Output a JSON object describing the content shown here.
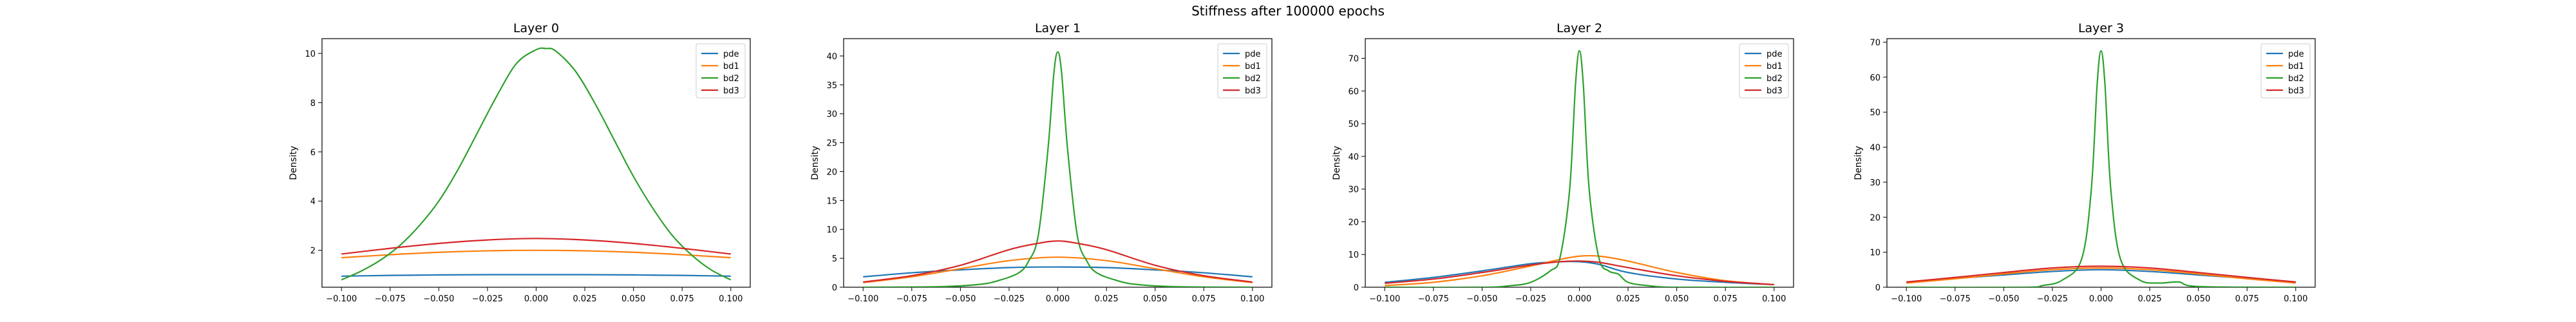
{
  "figure": {
    "suptitle": "Stiffness after 100000 epochs"
  },
  "colors": {
    "pde": "#1f77b4",
    "bd1": "#ff7f0e",
    "bd2": "#2ca02c",
    "bd3": "#d62728"
  },
  "chart_data": [
    {
      "type": "line",
      "title": "Layer 0",
      "xlabel": "",
      "ylabel": "Density",
      "xlim": [
        -0.11,
        0.11
      ],
      "ylim": [
        0.5,
        10.6
      ],
      "xticks": [
        -0.1,
        -0.075,
        -0.05,
        -0.025,
        0.0,
        0.025,
        0.05,
        0.075,
        0.1
      ],
      "xtick_labels": [
        "−0.100",
        "−0.075",
        "−0.050",
        "−0.025",
        "0.000",
        "0.025",
        "0.050",
        "0.075",
        "0.100"
      ],
      "yticks": [
        2,
        4,
        6,
        8,
        10
      ],
      "ytick_labels": [
        "2",
        "4",
        "6",
        "8",
        "10"
      ],
      "legend": {
        "placement": "top-right",
        "entries": [
          "pde",
          "bd1",
          "bd2",
          "bd3"
        ]
      },
      "grid": false,
      "series": [
        {
          "name": "pde",
          "x": [
            -0.1,
            -0.075,
            -0.05,
            -0.025,
            0.0,
            0.025,
            0.05,
            0.075,
            0.1
          ],
          "values": [
            0.95,
            0.98,
            1.0,
            1.01,
            1.01,
            1.01,
            1.0,
            0.98,
            0.95
          ]
        },
        {
          "name": "bd1",
          "x": [
            -0.1,
            -0.075,
            -0.05,
            -0.025,
            0.0,
            0.025,
            0.05,
            0.075,
            0.1
          ],
          "values": [
            1.7,
            1.82,
            1.92,
            1.98,
            2.0,
            1.98,
            1.92,
            1.82,
            1.7
          ]
        },
        {
          "name": "bd2",
          "x": [
            -0.1,
            -0.09,
            -0.08,
            -0.07,
            -0.06,
            -0.05,
            -0.04,
            -0.03,
            -0.02,
            -0.01,
            0.0,
            0.005,
            0.01,
            0.02,
            0.03,
            0.04,
            0.05,
            0.06,
            0.07,
            0.08,
            0.09,
            0.1
          ],
          "values": [
            0.8,
            1.15,
            1.6,
            2.2,
            3.0,
            4.0,
            5.3,
            6.8,
            8.3,
            9.6,
            10.15,
            10.2,
            10.1,
            9.3,
            8.0,
            6.5,
            5.0,
            3.7,
            2.6,
            1.8,
            1.2,
            0.8
          ]
        },
        {
          "name": "bd3",
          "x": [
            -0.1,
            -0.075,
            -0.05,
            -0.025,
            0.0,
            0.025,
            0.05,
            0.075,
            0.1
          ],
          "values": [
            1.85,
            2.08,
            2.28,
            2.42,
            2.48,
            2.42,
            2.28,
            2.08,
            1.85
          ]
        }
      ]
    },
    {
      "type": "line",
      "title": "Layer 1",
      "xlabel": "",
      "ylabel": "Density",
      "xlim": [
        -0.11,
        0.11
      ],
      "ylim": [
        0,
        43
      ],
      "xticks": [
        -0.1,
        -0.075,
        -0.05,
        -0.025,
        0.0,
        0.025,
        0.05,
        0.075,
        0.1
      ],
      "xtick_labels": [
        "−0.100",
        "−0.075",
        "−0.050",
        "−0.025",
        "0.000",
        "0.025",
        "0.050",
        "0.075",
        "0.100"
      ],
      "yticks": [
        0,
        5,
        10,
        15,
        20,
        25,
        30,
        35,
        40
      ],
      "ytick_labels": [
        "0",
        "5",
        "10",
        "15",
        "20",
        "25",
        "30",
        "35",
        "40"
      ],
      "legend": {
        "placement": "top-right",
        "entries": [
          "pde",
          "bd1",
          "bd2",
          "bd3"
        ]
      },
      "grid": false,
      "series": [
        {
          "name": "pde",
          "x": [
            -0.1,
            -0.075,
            -0.05,
            -0.025,
            0.0,
            0.025,
            0.05,
            0.075,
            0.1
          ],
          "values": [
            1.8,
            2.5,
            3.0,
            3.4,
            3.5,
            3.4,
            3.0,
            2.5,
            1.8
          ]
        },
        {
          "name": "bd1",
          "x": [
            -0.1,
            -0.075,
            -0.05,
            -0.025,
            0.0,
            0.025,
            0.05,
            0.075,
            0.1
          ],
          "values": [
            0.8,
            1.8,
            3.2,
            4.6,
            5.2,
            4.6,
            3.2,
            1.8,
            0.8
          ]
        },
        {
          "name": "bd2",
          "x": [
            -0.1,
            -0.06,
            -0.04,
            -0.03,
            -0.02,
            -0.015,
            -0.01,
            -0.005,
            -0.002,
            0.0,
            0.002,
            0.005,
            0.01,
            0.015,
            0.02,
            0.03,
            0.04,
            0.06,
            0.1
          ],
          "values": [
            0.0,
            0.1,
            0.5,
            1.2,
            2.5,
            4.5,
            9.0,
            24.0,
            37.0,
            40.7,
            37.0,
            24.0,
            9.0,
            4.5,
            2.5,
            1.2,
            0.5,
            0.1,
            0.0
          ]
        },
        {
          "name": "bd3",
          "x": [
            -0.1,
            -0.075,
            -0.05,
            -0.025,
            -0.01,
            0.0,
            0.01,
            0.025,
            0.05,
            0.075,
            0.1
          ],
          "values": [
            0.9,
            2.0,
            3.8,
            6.5,
            7.6,
            8.0,
            7.6,
            6.5,
            3.8,
            2.0,
            0.9
          ]
        }
      ]
    },
    {
      "type": "line",
      "title": "Layer 2",
      "xlabel": "",
      "ylabel": "Density",
      "xlim": [
        -0.11,
        0.11
      ],
      "ylim": [
        0,
        76
      ],
      "xticks": [
        -0.1,
        -0.075,
        -0.05,
        -0.025,
        0.0,
        0.025,
        0.05,
        0.075,
        0.1
      ],
      "xtick_labels": [
        "−0.100",
        "−0.075",
        "−0.050",
        "−0.025",
        "0.000",
        "0.025",
        "0.050",
        "0.075",
        "0.100"
      ],
      "yticks": [
        0,
        10,
        20,
        30,
        40,
        50,
        60,
        70
      ],
      "ytick_labels": [
        "0",
        "10",
        "20",
        "30",
        "40",
        "50",
        "60",
        "70"
      ],
      "legend": {
        "placement": "top-right",
        "entries": [
          "pde",
          "bd1",
          "bd2",
          "bd3"
        ]
      },
      "grid": false,
      "series": [
        {
          "name": "pde",
          "x": [
            -0.1,
            -0.075,
            -0.05,
            -0.025,
            -0.01,
            0.0,
            0.01,
            0.025,
            0.05,
            0.075,
            0.1
          ],
          "values": [
            1.5,
            3.0,
            5.0,
            7.2,
            7.8,
            7.8,
            7.0,
            4.5,
            2.5,
            1.5,
            0.8
          ]
        },
        {
          "name": "bd1",
          "x": [
            -0.1,
            -0.075,
            -0.05,
            -0.025,
            -0.01,
            0.0,
            0.01,
            0.025,
            0.05,
            0.075,
            0.1
          ],
          "values": [
            0.5,
            1.5,
            3.5,
            6.5,
            8.5,
            9.5,
            9.5,
            8.0,
            4.5,
            2.0,
            0.8
          ]
        },
        {
          "name": "bd2",
          "x": [
            -0.1,
            -0.05,
            -0.035,
            -0.025,
            -0.015,
            -0.01,
            -0.005,
            -0.002,
            0.0,
            0.002,
            0.005,
            0.01,
            0.015,
            0.02,
            0.025,
            0.035,
            0.05,
            0.1
          ],
          "values": [
            0.0,
            0.0,
            0.5,
            1.5,
            5.0,
            9.0,
            30.0,
            62.0,
            72.3,
            62.0,
            30.0,
            9.0,
            5.0,
            4.0,
            1.5,
            0.5,
            0.0,
            0.0
          ]
        },
        {
          "name": "bd3",
          "x": [
            -0.1,
            -0.075,
            -0.05,
            -0.025,
            -0.01,
            0.0,
            0.01,
            0.025,
            0.05,
            0.075,
            0.1
          ],
          "values": [
            1.2,
            2.5,
            4.5,
            6.8,
            7.8,
            8.0,
            7.6,
            6.0,
            3.5,
            1.8,
            0.8
          ]
        }
      ]
    },
    {
      "type": "line",
      "title": "Layer 3",
      "xlabel": "",
      "ylabel": "Density",
      "xlim": [
        -0.11,
        0.11
      ],
      "ylim": [
        0,
        71
      ],
      "xticks": [
        -0.1,
        -0.075,
        -0.05,
        -0.025,
        0.0,
        0.025,
        0.05,
        0.075,
        0.1
      ],
      "xtick_labels": [
        "−0.100",
        "−0.075",
        "−0.050",
        "−0.025",
        "0.000",
        "0.025",
        "0.050",
        "0.075",
        "0.100"
      ],
      "yticks": [
        0,
        10,
        20,
        30,
        40,
        50,
        60,
        70
      ],
      "ytick_labels": [
        "0",
        "10",
        "20",
        "30",
        "40",
        "50",
        "60",
        "70"
      ],
      "legend": {
        "placement": "top-right",
        "entries": [
          "pde",
          "bd1",
          "bd2",
          "bd3"
        ]
      },
      "grid": false,
      "series": [
        {
          "name": "pde",
          "x": [
            -0.1,
            -0.075,
            -0.05,
            -0.025,
            0.0,
            0.025,
            0.05,
            0.075,
            0.1
          ],
          "values": [
            1.5,
            2.5,
            3.5,
            4.5,
            5.0,
            4.5,
            3.5,
            2.5,
            1.5
          ]
        },
        {
          "name": "bd1",
          "x": [
            -0.1,
            -0.075,
            -0.05,
            -0.025,
            0.0,
            0.025,
            0.05,
            0.075,
            0.1
          ],
          "values": [
            1.2,
            2.4,
            3.8,
            5.0,
            5.5,
            5.0,
            3.8,
            2.4,
            1.2
          ]
        },
        {
          "name": "bd2",
          "x": [
            -0.1,
            -0.04,
            -0.03,
            -0.02,
            -0.01,
            -0.005,
            -0.002,
            0.0,
            0.002,
            0.005,
            0.01,
            0.02,
            0.03,
            0.04,
            0.05,
            0.1
          ],
          "values": [
            0.0,
            0.0,
            0.5,
            2.0,
            8.0,
            28.0,
            58.0,
            67.5,
            58.0,
            28.0,
            8.0,
            2.0,
            1.2,
            1.5,
            0.2,
            0.0
          ]
        },
        {
          "name": "bd3",
          "x": [
            -0.1,
            -0.075,
            -0.05,
            -0.025,
            0.0,
            0.025,
            0.05,
            0.075,
            0.1
          ],
          "values": [
            1.5,
            2.8,
            4.2,
            5.5,
            6.0,
            5.5,
            4.2,
            2.8,
            1.5
          ]
        }
      ]
    }
  ]
}
